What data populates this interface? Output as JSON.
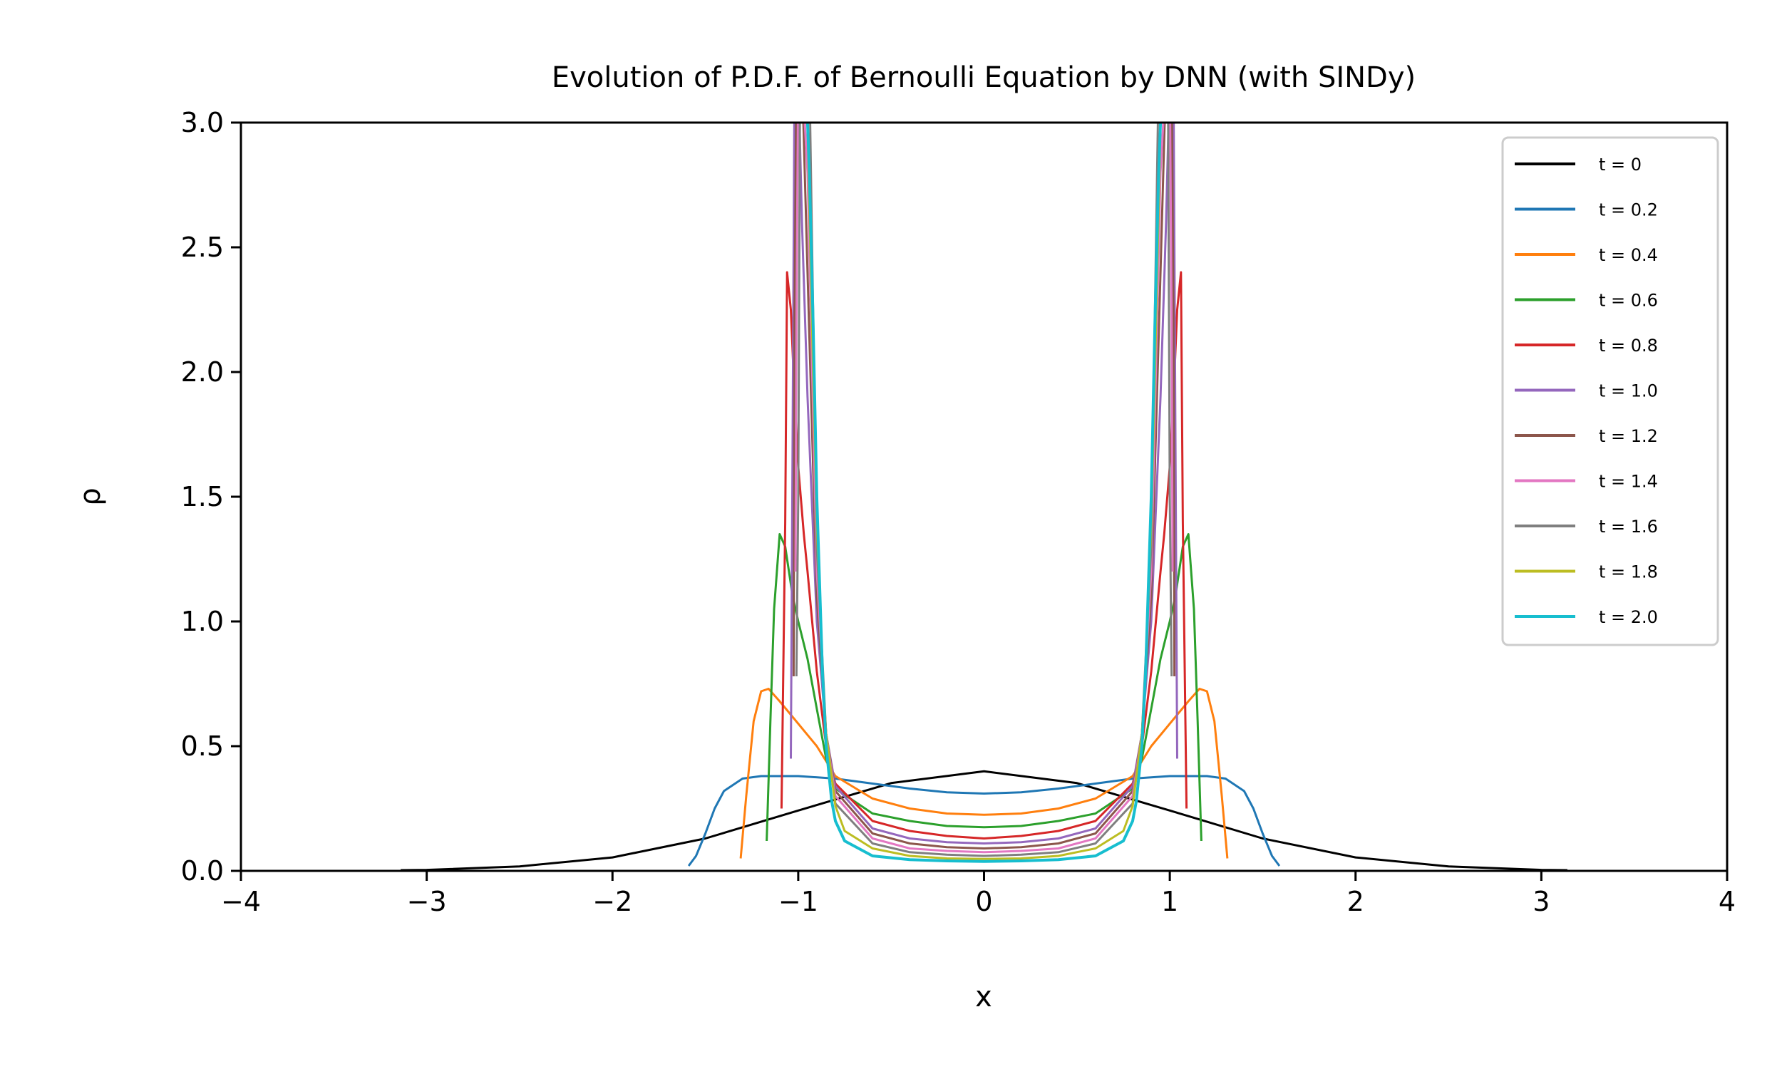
{
  "chart_data": {
    "type": "line",
    "title": "Evolution of P.D.F. of Bernoulli Equation by DNN (with SINDy)",
    "xlabel": "x",
    "ylabel": "ρ",
    "xlim": [
      -4,
      4
    ],
    "ylim": [
      0,
      3
    ],
    "xticks": [
      -4,
      -3,
      -2,
      -1,
      0,
      1,
      2,
      3,
      4
    ],
    "xtick_labels": [
      "−4",
      "−3",
      "−2",
      "−1",
      "0",
      "1",
      "2",
      "3",
      "4"
    ],
    "yticks": [
      0,
      0.5,
      1,
      1.5,
      2,
      2.5,
      3
    ],
    "ytick_labels": [
      "0.0",
      "0.5",
      "1.0",
      "1.5",
      "2.0",
      "2.5",
      "3.0"
    ],
    "grid": false,
    "legend_position": "top-right",
    "series": [
      {
        "name": "t = 0",
        "color": "#000000",
        "x": [
          -3.14,
          -3,
          -2.5,
          -2,
          -1.5,
          -1,
          -0.5,
          0,
          0.5,
          1,
          1.5,
          2,
          2.5,
          3,
          3.14
        ],
        "y": [
          0.003,
          0.004,
          0.018,
          0.054,
          0.13,
          0.242,
          0.352,
          0.399,
          0.352,
          0.242,
          0.13,
          0.054,
          0.018,
          0.004,
          0.003
        ]
      },
      {
        "name": "t = 0.2",
        "color": "#1f77b4",
        "x": [
          -1.59,
          -1.55,
          -1.5,
          -1.45,
          -1.4,
          -1.3,
          -1.2,
          -1,
          -0.8,
          -0.6,
          -0.4,
          -0.2,
          0,
          0.2,
          0.4,
          0.6,
          0.8,
          1,
          1.2,
          1.3,
          1.4,
          1.45,
          1.5,
          1.55,
          1.59
        ],
        "y": [
          0.02,
          0.06,
          0.15,
          0.25,
          0.32,
          0.37,
          0.38,
          0.38,
          0.37,
          0.35,
          0.33,
          0.315,
          0.31,
          0.315,
          0.33,
          0.35,
          0.37,
          0.38,
          0.38,
          0.37,
          0.32,
          0.25,
          0.15,
          0.06,
          0.02
        ]
      },
      {
        "name": "t = 0.4",
        "color": "#ff7f0e",
        "x": [
          -1.31,
          -1.28,
          -1.24,
          -1.2,
          -1.16,
          -1.1,
          -1,
          -0.9,
          -0.8,
          -0.6,
          -0.4,
          -0.2,
          0,
          0.2,
          0.4,
          0.6,
          0.8,
          0.9,
          1,
          1.1,
          1.16,
          1.2,
          1.24,
          1.28,
          1.31
        ],
        "y": [
          0.05,
          0.3,
          0.6,
          0.72,
          0.73,
          0.68,
          0.59,
          0.5,
          0.38,
          0.29,
          0.25,
          0.23,
          0.225,
          0.23,
          0.25,
          0.29,
          0.38,
          0.5,
          0.59,
          0.68,
          0.73,
          0.72,
          0.6,
          0.3,
          0.05
        ]
      },
      {
        "name": "t = 0.6",
        "color": "#2ca02c",
        "x": [
          -1.17,
          -1.15,
          -1.13,
          -1.1,
          -1.07,
          -1.03,
          -1,
          -0.95,
          -0.9,
          -0.85,
          -0.8,
          -0.6,
          -0.4,
          -0.2,
          0,
          0.2,
          0.4,
          0.6,
          0.8,
          0.85,
          0.9,
          0.95,
          1,
          1.03,
          1.07,
          1.1,
          1.13,
          1.15,
          1.17
        ],
        "y": [
          0.12,
          0.6,
          1.05,
          1.35,
          1.3,
          1.1,
          1.0,
          0.85,
          0.65,
          0.45,
          0.33,
          0.23,
          0.2,
          0.18,
          0.175,
          0.18,
          0.2,
          0.23,
          0.33,
          0.45,
          0.65,
          0.85,
          1.0,
          1.1,
          1.3,
          1.35,
          1.05,
          0.6,
          0.12
        ]
      },
      {
        "name": "t = 0.8",
        "color": "#d62728",
        "x": [
          -1.09,
          -1.07,
          -1.06,
          -1.04,
          -1.02,
          -1,
          -0.97,
          -0.95,
          -0.9,
          -0.85,
          -0.8,
          -0.6,
          -0.4,
          -0.2,
          0,
          0.2,
          0.4,
          0.6,
          0.8,
          0.85,
          0.9,
          0.95,
          0.97,
          1,
          1.02,
          1.04,
          1.06,
          1.07,
          1.09
        ],
        "y": [
          0.25,
          1.4,
          2.4,
          2.25,
          1.9,
          1.62,
          1.35,
          1.2,
          0.8,
          0.5,
          0.35,
          0.2,
          0.16,
          0.14,
          0.13,
          0.14,
          0.16,
          0.2,
          0.35,
          0.5,
          0.8,
          1.2,
          1.35,
          1.62,
          1.9,
          2.25,
          2.4,
          1.4,
          0.25
        ]
      },
      {
        "name": "t = 1.0",
        "color": "#9467bd",
        "x": [
          -1.04,
          -1.03,
          -1.02,
          -1.01,
          -1.0,
          -0.98,
          -0.95,
          -0.9,
          -0.85,
          -0.8,
          -0.6,
          -0.4,
          -0.2,
          0,
          0.2,
          0.4,
          0.6,
          0.8,
          0.85,
          0.9,
          0.95,
          0.98,
          1.0,
          1.01,
          1.02,
          1.03,
          1.04
        ],
        "y": [
          0.45,
          1.8,
          3.2,
          3.2,
          3.2,
          2.6,
          1.9,
          1.0,
          0.55,
          0.34,
          0.17,
          0.13,
          0.115,
          0.11,
          0.115,
          0.13,
          0.17,
          0.34,
          0.55,
          1.0,
          1.9,
          2.6,
          3.2,
          3.2,
          3.2,
          1.8,
          0.45
        ]
      },
      {
        "name": "t = 1.2",
        "color": "#8c564b",
        "x": [
          -1.025,
          -1.02,
          -1.01,
          -1.0,
          -0.98,
          -0.95,
          -0.9,
          -0.85,
          -0.8,
          -0.6,
          -0.4,
          -0.2,
          0,
          0.2,
          0.4,
          0.6,
          0.8,
          0.85,
          0.9,
          0.95,
          0.98,
          1.0,
          1.01,
          1.02,
          1.025
        ],
        "y": [
          0.78,
          2.2,
          3.2,
          3.2,
          3.2,
          2.4,
          1.1,
          0.55,
          0.32,
          0.15,
          0.11,
          0.095,
          0.09,
          0.095,
          0.11,
          0.15,
          0.32,
          0.55,
          1.1,
          2.4,
          3.2,
          3.2,
          3.2,
          2.2,
          0.78
        ]
      },
      {
        "name": "t = 1.4",
        "color": "#e377c2",
        "x": [
          -1.015,
          -1.01,
          -1.0,
          -0.98,
          -0.95,
          -0.9,
          -0.85,
          -0.8,
          -0.6,
          -0.4,
          -0.2,
          0,
          0.2,
          0.4,
          0.6,
          0.8,
          0.85,
          0.9,
          0.95,
          0.98,
          1.0,
          1.01,
          1.015
        ],
        "y": [
          1.2,
          2.2,
          3.2,
          3.2,
          2.8,
          1.2,
          0.55,
          0.3,
          0.13,
          0.09,
          0.08,
          0.075,
          0.08,
          0.09,
          0.13,
          0.3,
          0.55,
          1.2,
          2.8,
          3.2,
          3.2,
          2.2,
          1.2
        ]
      },
      {
        "name": "t = 1.6",
        "color": "#7f7f7f",
        "x": [
          -1.01,
          -1.0,
          -0.99,
          -0.97,
          -0.94,
          -0.9,
          -0.85,
          -0.8,
          -0.6,
          -0.4,
          -0.2,
          0,
          0.2,
          0.4,
          0.6,
          0.8,
          0.85,
          0.9,
          0.94,
          0.97,
          0.99,
          1.0,
          1.01
        ],
        "y": [
          0.78,
          1.5,
          3.2,
          3.2,
          3.2,
          1.3,
          0.55,
          0.27,
          0.11,
          0.075,
          0.065,
          0.06,
          0.065,
          0.075,
          0.11,
          0.27,
          0.55,
          1.3,
          3.2,
          3.2,
          3.2,
          1.5,
          0.78
        ]
      },
      {
        "name": "t = 1.8",
        "color": "#bcbd22",
        "x": [
          -0.99,
          -0.97,
          -0.95,
          -0.92,
          -0.9,
          -0.87,
          -0.85,
          -0.8,
          -0.75,
          -0.6,
          -0.4,
          -0.2,
          0,
          0.2,
          0.4,
          0.6,
          0.75,
          0.8,
          0.85,
          0.87,
          0.9,
          0.92,
          0.95,
          0.97,
          0.99
        ],
        "y": [
          3.2,
          3.2,
          3.0,
          2.0,
          1.4,
          0.8,
          0.55,
          0.26,
          0.16,
          0.09,
          0.06,
          0.05,
          0.048,
          0.05,
          0.06,
          0.09,
          0.16,
          0.26,
          0.55,
          0.8,
          1.4,
          2.0,
          3.0,
          3.2,
          3.2
        ]
      },
      {
        "name": "t = 2.0",
        "color": "#17becf",
        "x": [
          -0.96,
          -0.94,
          -0.92,
          -0.9,
          -0.87,
          -0.85,
          -0.82,
          -0.8,
          -0.75,
          -0.6,
          -0.4,
          -0.2,
          0,
          0.2,
          0.4,
          0.6,
          0.75,
          0.8,
          0.82,
          0.85,
          0.87,
          0.9,
          0.92,
          0.94,
          0.96
        ],
        "y": [
          3.2,
          2.8,
          2.2,
          1.5,
          0.8,
          0.5,
          0.28,
          0.2,
          0.12,
          0.06,
          0.045,
          0.04,
          0.038,
          0.04,
          0.045,
          0.06,
          0.12,
          0.2,
          0.28,
          0.5,
          0.8,
          1.5,
          2.2,
          2.8,
          3.2
        ]
      }
    ]
  }
}
